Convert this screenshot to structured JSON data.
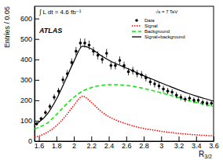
{
  "chart_data": {
    "type": "scatter",
    "x_label": "R3/2",
    "y_label": "Entries / 0.05",
    "annotations": [
      "∫ L dt = 4.6 fb⁻¹",
      "ATLAS",
      "√s = 7 TeV"
    ],
    "legend": "upper right",
    "xlim": [
      1.55,
      3.6
    ],
    "ylim": [
      0,
      660
    ],
    "xticks": [
      1.6,
      1.8,
      2,
      2.2,
      2.4,
      2.6,
      2.8,
      3,
      3.2,
      3.4,
      3.6
    ],
    "yticks": [
      0,
      100,
      200,
      300,
      400,
      500,
      600
    ],
    "series": [
      {
        "name": "Data",
        "type": "scatter",
        "marker": "circle",
        "color": "#000000",
        "x": [
          1.575,
          1.625,
          1.675,
          1.725,
          1.775,
          1.825,
          1.875,
          1.925,
          1.975,
          2.025,
          2.075,
          2.125,
          2.175,
          2.225,
          2.275,
          2.325,
          2.375,
          2.425,
          2.475,
          2.525,
          2.575,
          2.625,
          2.675,
          2.725,
          2.775,
          2.825,
          2.875,
          2.925,
          2.975,
          3.025,
          3.075,
          3.125,
          3.175,
          3.225,
          3.275,
          3.325,
          3.375,
          3.425,
          3.475,
          3.525,
          3.575
        ],
        "values": [
          85,
          110,
          140,
          170,
          215,
          245,
          300,
          330,
          385,
          440,
          480,
          480,
          470,
          440,
          420,
          400,
          430,
          370,
          370,
          395,
          370,
          340,
          345,
          330,
          325,
          310,
          290,
          280,
          270,
          255,
          245,
          240,
          225,
          215,
          205,
          210,
          200,
          200,
          190,
          185,
          185
        ],
        "errors": [
          9,
          10,
          12,
          13,
          15,
          16,
          17,
          18,
          20,
          21,
          22,
          22,
          22,
          21,
          20,
          20,
          21,
          19,
          19,
          20,
          19,
          18,
          19,
          18,
          18,
          18,
          17,
          17,
          16,
          16,
          16,
          15,
          15,
          15,
          14,
          14,
          14,
          14,
          14,
          14,
          14
        ]
      },
      {
        "name": "Signal",
        "type": "line",
        "line_style": "dotted",
        "color": "#ff0000",
        "x": [
          1.55,
          1.6,
          1.7,
          1.8,
          1.9,
          2.0,
          2.1,
          2.2,
          2.3,
          2.4,
          2.5,
          2.6,
          2.7,
          2.8,
          2.9,
          3.0,
          3.1,
          3.2,
          3.3,
          3.4,
          3.5,
          3.6
        ],
        "values": [
          20,
          25,
          45,
          75,
          120,
          175,
          220,
          190,
          150,
          120,
          100,
          85,
          72,
          62,
          55,
          48,
          43,
          38,
          34,
          31,
          28,
          26
        ]
      },
      {
        "name": "Background",
        "type": "line",
        "line_style": "dashed",
        "color": "#00ee00",
        "x": [
          1.55,
          1.6,
          1.7,
          1.8,
          1.9,
          2.0,
          2.1,
          2.2,
          2.3,
          2.4,
          2.5,
          2.6,
          2.7,
          2.8,
          2.9,
          3.0,
          3.1,
          3.2,
          3.3,
          3.4,
          3.5,
          3.6
        ],
        "values": [
          60,
          68,
          90,
          130,
          175,
          215,
          245,
          262,
          272,
          276,
          276,
          273,
          267,
          258,
          248,
          237,
          225,
          213,
          201,
          190,
          180,
          170
        ]
      },
      {
        "name": "Signal+background",
        "type": "line",
        "line_style": "solid",
        "color": "#000000",
        "x": [
          1.55,
          1.6,
          1.7,
          1.8,
          1.9,
          2.0,
          2.1,
          2.2,
          2.3,
          2.4,
          2.5,
          2.6,
          2.7,
          2.8,
          2.9,
          3.0,
          3.1,
          3.2,
          3.3,
          3.4,
          3.5,
          3.6
        ],
        "values": [
          80,
          93,
          135,
          205,
          295,
          390,
          465,
          452,
          422,
          396,
          376,
          358,
          339,
          320,
          303,
          285,
          268,
          251,
          235,
          221,
          208,
          196
        ]
      }
    ]
  }
}
